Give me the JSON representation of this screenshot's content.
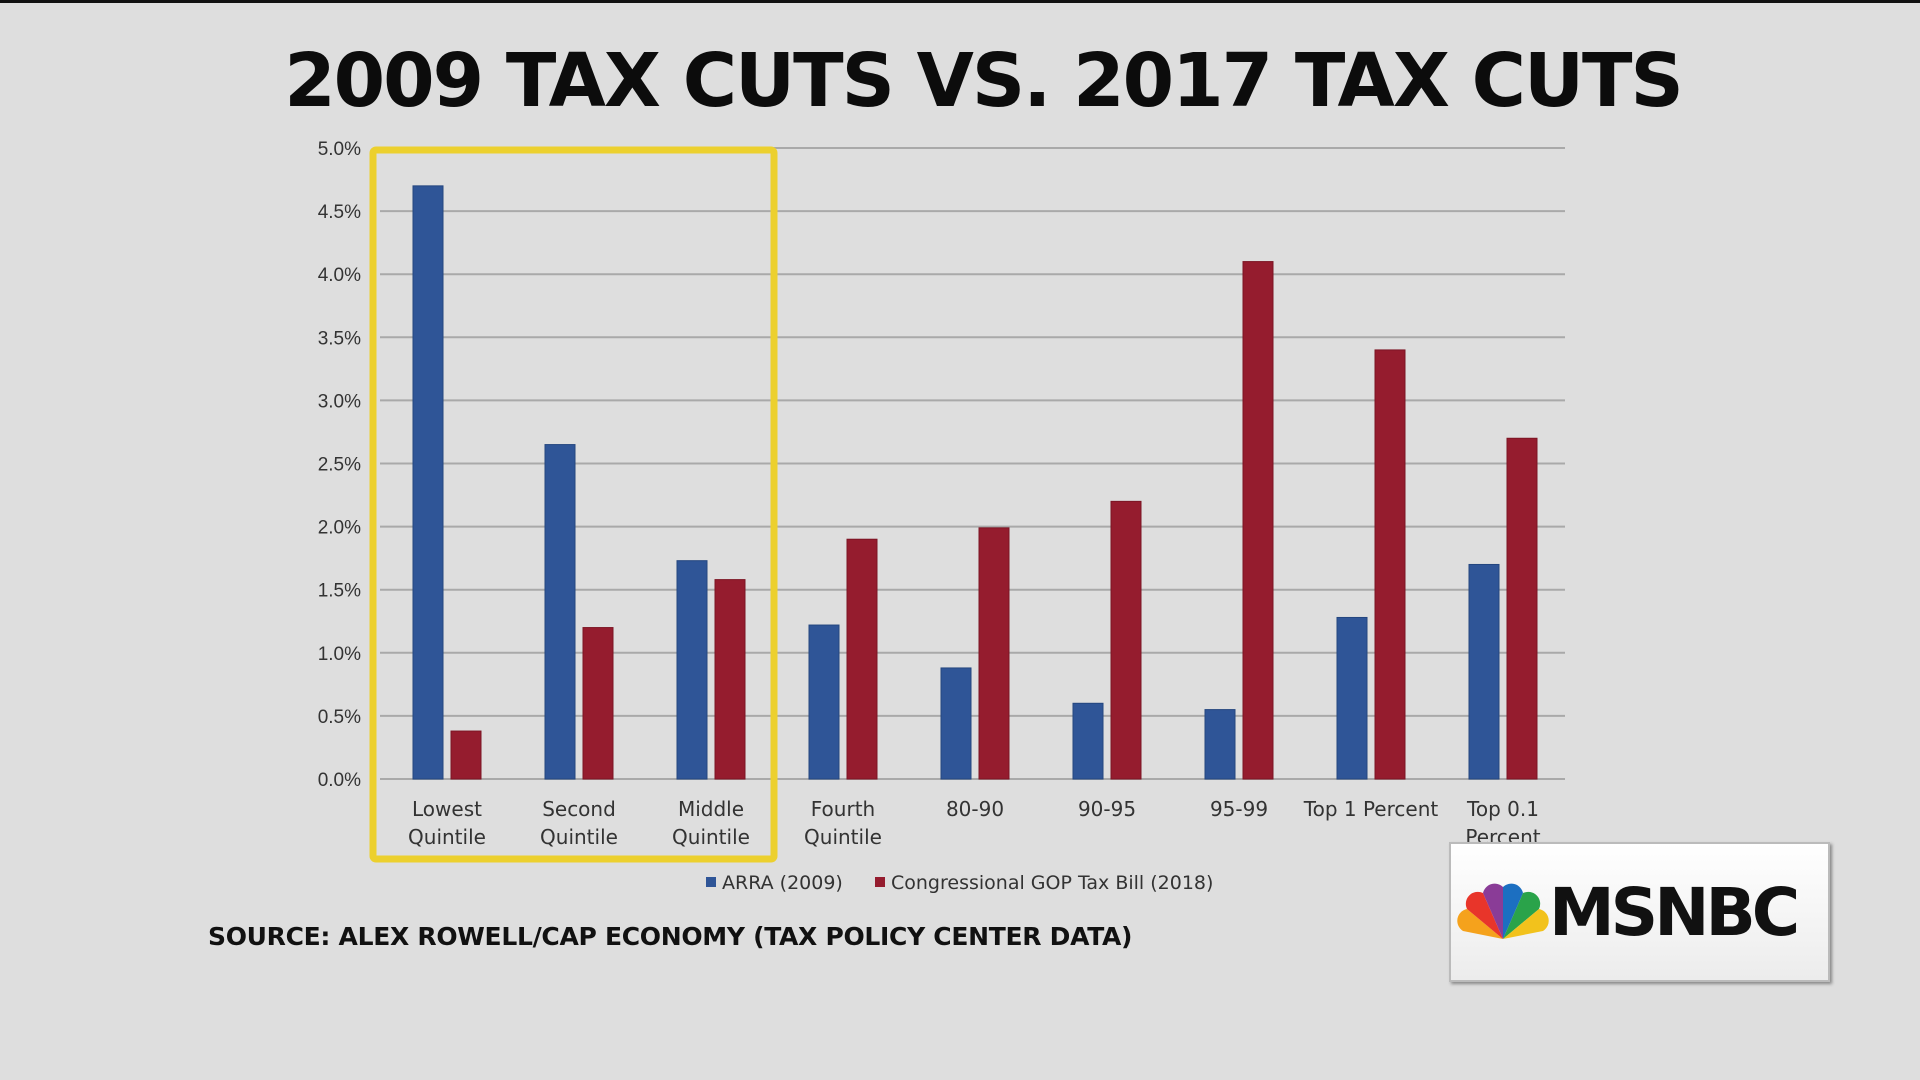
{
  "title": "2009 TAX CUTS VS. 2017 TAX CUTS",
  "source": "SOURCE: ALEX ROWELL/CAP ECONOMY (TAX POLICY CENTER DATA)",
  "logo": {
    "text": "MSNBC"
  },
  "colors": {
    "arra": "#2f5597",
    "gop": "#951c2e",
    "highlight": "#ecd02e"
  },
  "chart_data": {
    "type": "bar",
    "title": "",
    "xlabel": "",
    "ylabel": "",
    "ylim": [
      0,
      5
    ],
    "yticks": [
      "0.0%",
      "0.5%",
      "1.0%",
      "1.5%",
      "2.0%",
      "2.5%",
      "3.0%",
      "3.5%",
      "4.0%",
      "4.5%",
      "5.0%"
    ],
    "grid": true,
    "legend_placement": "bottom",
    "categories": [
      [
        "Lowest",
        "Quintile"
      ],
      [
        "Second",
        "Quintile"
      ],
      [
        "Middle",
        "Quintile"
      ],
      [
        "Fourth",
        "Quintile"
      ],
      [
        "80-90"
      ],
      [
        "90-95"
      ],
      [
        "95-99"
      ],
      [
        "Top 1 Percent"
      ],
      [
        "Top 0.1",
        "Percent"
      ]
    ],
    "series": [
      {
        "name": "ARRA (2009)",
        "color": "#2f5597",
        "values": [
          4.7,
          2.65,
          1.73,
          1.22,
          0.88,
          0.6,
          0.55,
          1.28,
          1.7
        ]
      },
      {
        "name": "Congressional GOP Tax Bill (2018)",
        "color": "#951c2e",
        "values": [
          0.38,
          1.2,
          1.58,
          1.9,
          1.99,
          2.2,
          4.1,
          3.4,
          2.7
        ]
      }
    ],
    "highlighted_categories": [
      "Lowest Quintile",
      "Second Quintile",
      "Middle Quintile"
    ]
  }
}
